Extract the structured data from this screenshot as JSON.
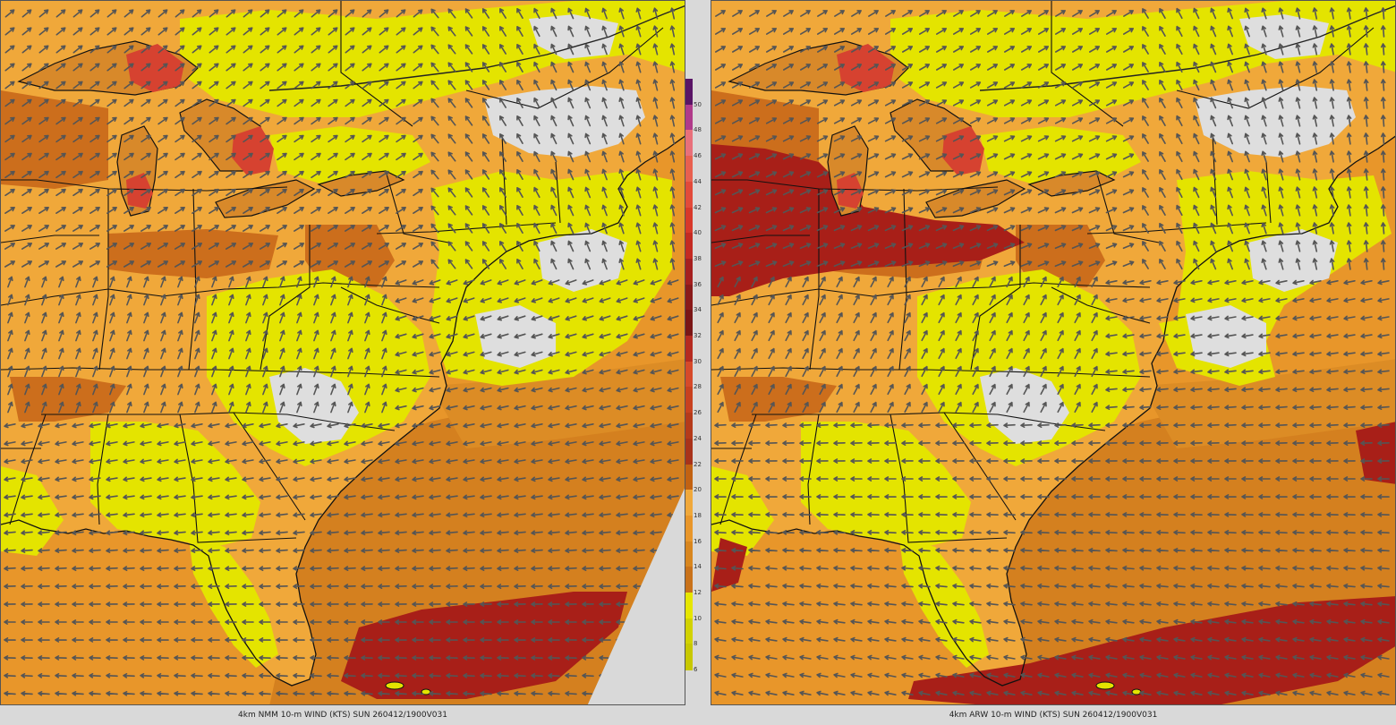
{
  "panels": [
    {
      "id": "nmm",
      "caption": "4km NMM 10-m WIND (KTS) SUN 260412/1900V031"
    },
    {
      "id": "arw",
      "caption": "4km ARW 10-m WIND (KTS) SUN 260412/1900V031"
    }
  ],
  "colorbar": {
    "labels": [
      "50",
      "48",
      "46",
      "44",
      "42",
      "40",
      "38",
      "36",
      "34",
      "32",
      "30",
      "28",
      "26",
      "24",
      "22",
      "20",
      "18",
      "16",
      "14",
      "12",
      "10",
      "8",
      "6"
    ],
    "colors": [
      "#5a1466",
      "#b03a8a",
      "#e8707a",
      "#e8604f",
      "#e24a3a",
      "#d8382a",
      "#c42a22",
      "#a51f1f",
      "#8a1a1a",
      "#7a1616",
      "#b52a20",
      "#d64a2a",
      "#c8411f",
      "#b53a1a",
      "#a8321a",
      "#c26212",
      "#f0a83a",
      "#e8962a",
      "#d8861e",
      "#c9721a",
      "#e6e600",
      "#d2d200",
      "#c8c800"
    ]
  },
  "palette": {
    "ocean": "#e8962a",
    "land_light": "#f0a83a",
    "land_dark": "#cc6e1c",
    "yellow": "#e4e400",
    "grey": "#dedede",
    "red": "#a81f18",
    "lake": "#d64230",
    "border": "#111111",
    "arrow": "#555555"
  }
}
